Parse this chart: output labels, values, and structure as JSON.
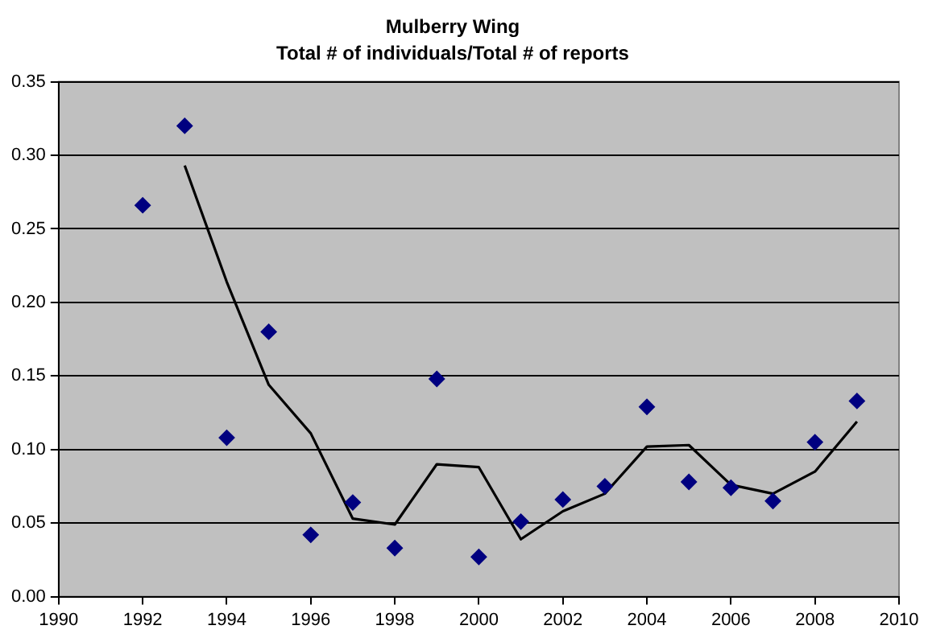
{
  "chart_data": {
    "type": "scatter",
    "title": "Mulberry Wing",
    "subtitle": "Total # of individuals/Total # of reports",
    "x": [
      1992,
      1993,
      1994,
      1995,
      1996,
      1997,
      1998,
      1999,
      2000,
      2001,
      2002,
      2003,
      2004,
      2005,
      2006,
      2007,
      2008,
      2009
    ],
    "series": [
      {
        "type": "scatter",
        "color": "#000080",
        "marker": "diamond",
        "values": [
          0.266,
          0.32,
          0.108,
          0.18,
          0.042,
          0.064,
          0.033,
          0.148,
          0.027,
          0.051,
          0.066,
          0.075,
          0.129,
          0.078,
          0.074,
          0.065,
          0.105,
          0.133
        ]
      },
      {
        "type": "line",
        "color": "#000000",
        "marker": "none",
        "line_style": "solid",
        "x": [
          1993,
          1994,
          1995,
          1996,
          1997,
          1998,
          1999,
          2000,
          2001,
          2002,
          2003,
          2004,
          2005,
          2006,
          2007,
          2008,
          2009
        ],
        "values": [
          0.293,
          0.214,
          0.144,
          0.111,
          0.053,
          0.049,
          0.09,
          0.088,
          0.039,
          0.058,
          0.07,
          0.102,
          0.103,
          0.076,
          0.07,
          0.085,
          0.119
        ]
      }
    ],
    "xlim": [
      1990,
      2010
    ],
    "xticks": [
      1990,
      1992,
      1994,
      1996,
      1998,
      2000,
      2002,
      2004,
      2006,
      2008,
      2010
    ],
    "ylim": [
      0,
      0.35
    ],
    "yticks": [
      {
        "value": 0,
        "label": "0.00"
      },
      {
        "value": 0.05,
        "label": "0.05"
      },
      {
        "value": 0.1,
        "label": "0.10"
      },
      {
        "value": 0.15,
        "label": "0.15"
      },
      {
        "value": 0.2,
        "label": "0.20"
      },
      {
        "value": 0.25,
        "label": "0.25"
      },
      {
        "value": 0.3,
        "label": "0.30"
      },
      {
        "value": 0.35,
        "label": "0.35"
      }
    ],
    "grid": "y",
    "legend": false
  }
}
